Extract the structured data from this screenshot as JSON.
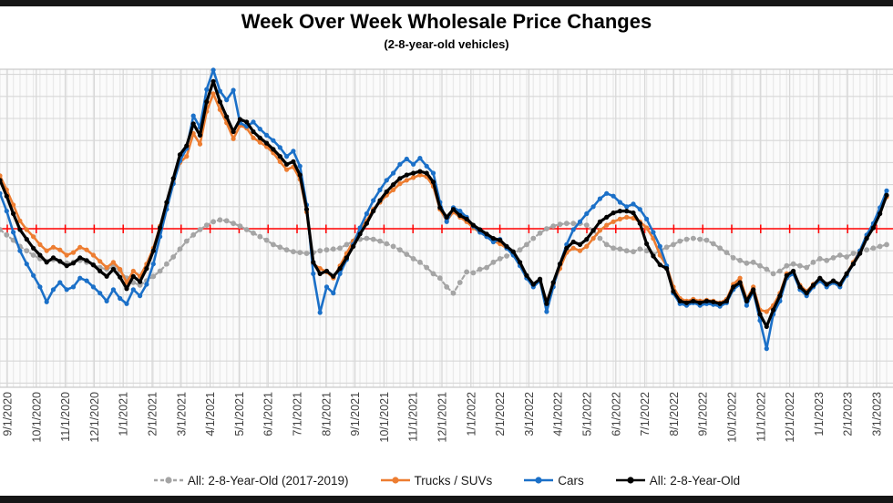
{
  "frame": {
    "top_bar": "window-top-border",
    "bottom_bar": "window-bottom-border"
  },
  "chart_data": {
    "type": "line",
    "title": "Week Over Week Wholesale Price Changes",
    "subtitle": "(2-8-year-old vehicles)",
    "xlabel": "",
    "ylabel": "",
    "x_tick_labels": [
      "9/1/2020",
      "10/1/2020",
      "11/1/2020",
      "12/1/2020",
      "1/1/2021",
      "2/1/2021",
      "3/1/2021",
      "4/1/2021",
      "5/1/2021",
      "6/1/2021",
      "7/1/2021",
      "8/1/2021",
      "9/1/2021",
      "10/1/2021",
      "11/1/2021",
      "12/1/2021",
      "1/1/2022",
      "2/1/2022",
      "3/1/2022",
      "4/1/2022",
      "5/1/2022",
      "6/1/2022",
      "7/1/2022",
      "8/1/2022",
      "9/1/2022",
      "10/1/2022",
      "11/1/2022",
      "12/1/2022",
      "1/1/2023",
      "2/1/2023",
      "3/1/2023"
    ],
    "x_resolution": "weekly",
    "points_per_series": 134,
    "ylim": [
      -1.8,
      1.8
    ],
    "y_gridline_step": 0.25,
    "zero_line": 0,
    "zero_line_color": "#FF0000",
    "grid": true,
    "legend_position": "bottom",
    "units": "percent (estimated, y-axis labels cropped)",
    "series": [
      {
        "name": "All: 2-8-Year-Old (2017-2019)",
        "slug": "all-2-8-year-old-2017-2019",
        "color": "#A5A5A5",
        "style": "dashed",
        "values": [
          -0.01,
          -0.07,
          -0.13,
          -0.2,
          -0.25,
          -0.3,
          -0.34,
          -0.37,
          -0.35,
          -0.37,
          -0.39,
          -0.38,
          -0.36,
          -0.38,
          -0.41,
          -0.44,
          -0.46,
          -0.43,
          -0.48,
          -0.56,
          -0.61,
          -0.64,
          -0.59,
          -0.54,
          -0.48,
          -0.4,
          -0.32,
          -0.23,
          -0.14,
          -0.07,
          -0.01,
          0.04,
          0.08,
          0.1,
          0.09,
          0.06,
          0.03,
          -0.01,
          -0.05,
          -0.09,
          -0.13,
          -0.18,
          -0.21,
          -0.24,
          -0.26,
          -0.27,
          -0.28,
          -0.27,
          -0.25,
          -0.24,
          -0.23,
          -0.22,
          -0.18,
          -0.14,
          -0.12,
          -0.11,
          -0.12,
          -0.14,
          -0.17,
          -0.2,
          -0.24,
          -0.29,
          -0.34,
          -0.38,
          -0.44,
          -0.51,
          -0.56,
          -0.66,
          -0.73,
          -0.61,
          -0.49,
          -0.5,
          -0.46,
          -0.44,
          -0.38,
          -0.34,
          -0.31,
          -0.28,
          -0.24,
          -0.18,
          -0.11,
          -0.05,
          0.0,
          0.03,
          0.05,
          0.06,
          0.06,
          0.06,
          0.04,
          -0.02,
          -0.11,
          -0.18,
          -0.22,
          -0.23,
          -0.25,
          -0.26,
          -0.23,
          -0.25,
          -0.29,
          -0.25,
          -0.21,
          -0.18,
          -0.14,
          -0.12,
          -0.11,
          -0.12,
          -0.13,
          -0.17,
          -0.22,
          -0.27,
          -0.33,
          -0.36,
          -0.39,
          -0.38,
          -0.42,
          -0.46,
          -0.51,
          -0.48,
          -0.42,
          -0.4,
          -0.42,
          -0.44,
          -0.38,
          -0.34,
          -0.36,
          -0.33,
          -0.3,
          -0.32,
          -0.28,
          -0.26,
          -0.24,
          -0.22,
          -0.2,
          -0.18
        ]
      },
      {
        "name": "Trucks / SUVs",
        "slug": "trucks-suvs",
        "color": "#ED7D31",
        "style": "solid",
        "values": [
          0.6,
          0.44,
          0.27,
          0.09,
          -0.01,
          -0.09,
          -0.18,
          -0.25,
          -0.21,
          -0.24,
          -0.3,
          -0.27,
          -0.21,
          -0.24,
          -0.3,
          -0.37,
          -0.44,
          -0.38,
          -0.46,
          -0.61,
          -0.48,
          -0.54,
          -0.4,
          -0.22,
          0.03,
          0.27,
          0.53,
          0.75,
          0.82,
          1.08,
          0.96,
          1.33,
          1.53,
          1.35,
          1.2,
          1.02,
          1.17,
          1.14,
          1.03,
          0.98,
          0.93,
          0.86,
          0.76,
          0.67,
          0.7,
          0.56,
          0.19,
          -0.4,
          -0.45,
          -0.49,
          -0.56,
          -0.42,
          -0.28,
          -0.14,
          -0.02,
          0.09,
          0.22,
          0.3,
          0.38,
          0.44,
          0.51,
          0.55,
          0.58,
          0.61,
          0.59,
          0.48,
          0.22,
          0.09,
          0.19,
          0.13,
          0.08,
          0.01,
          -0.04,
          -0.09,
          -0.14,
          -0.17,
          -0.22,
          -0.28,
          -0.4,
          -0.54,
          -0.64,
          -0.59,
          -0.82,
          -0.63,
          -0.45,
          -0.27,
          -0.22,
          -0.25,
          -0.2,
          -0.11,
          -0.02,
          0.04,
          0.08,
          0.11,
          0.13,
          0.12,
          0.08,
          0.01,
          -0.11,
          -0.3,
          -0.42,
          -0.66,
          -0.79,
          -0.82,
          -0.8,
          -0.82,
          -0.81,
          -0.82,
          -0.84,
          -0.8,
          -0.63,
          -0.56,
          -0.8,
          -0.66,
          -0.92,
          -0.94,
          -0.87,
          -0.73,
          -0.51,
          -0.49,
          -0.64,
          -0.71,
          -0.63,
          -0.57,
          -0.64,
          -0.6,
          -0.64,
          -0.51,
          -0.38,
          -0.25,
          -0.09,
          0.04,
          0.2,
          0.36
        ]
      },
      {
        "name": "Cars",
        "slug": "cars",
        "color": "#1B70C8",
        "style": "solid",
        "values": [
          0.4,
          0.2,
          -0.04,
          -0.25,
          -0.4,
          -0.53,
          -0.66,
          -0.83,
          -0.69,
          -0.61,
          -0.69,
          -0.66,
          -0.56,
          -0.59,
          -0.66,
          -0.73,
          -0.82,
          -0.69,
          -0.79,
          -0.85,
          -0.69,
          -0.76,
          -0.63,
          -0.4,
          -0.09,
          0.22,
          0.51,
          0.77,
          0.91,
          1.28,
          1.15,
          1.58,
          1.8,
          1.56,
          1.46,
          1.57,
          1.2,
          1.16,
          1.21,
          1.13,
          1.06,
          1.0,
          0.92,
          0.82,
          0.88,
          0.71,
          0.27,
          -0.51,
          -0.95,
          -0.66,
          -0.73,
          -0.51,
          -0.35,
          -0.18,
          0.01,
          0.17,
          0.32,
          0.44,
          0.55,
          0.63,
          0.73,
          0.79,
          0.73,
          0.8,
          0.71,
          0.63,
          0.3,
          0.08,
          0.24,
          0.2,
          0.13,
          0.03,
          -0.04,
          -0.09,
          -0.15,
          -0.12,
          -0.22,
          -0.3,
          -0.42,
          -0.56,
          -0.66,
          -0.59,
          -0.94,
          -0.66,
          -0.4,
          -0.18,
          -0.01,
          0.08,
          0.17,
          0.25,
          0.34,
          0.4,
          0.37,
          0.3,
          0.25,
          0.28,
          0.22,
          0.11,
          -0.04,
          -0.2,
          -0.42,
          -0.73,
          -0.85,
          -0.87,
          -0.84,
          -0.87,
          -0.85,
          -0.86,
          -0.88,
          -0.84,
          -0.69,
          -0.63,
          -0.87,
          -0.71,
          -1.04,
          -1.36,
          -0.97,
          -0.82,
          -0.56,
          -0.51,
          -0.69,
          -0.76,
          -0.66,
          -0.59,
          -0.66,
          -0.61,
          -0.66,
          -0.53,
          -0.4,
          -0.25,
          -0.07,
          0.06,
          0.24,
          0.43
        ]
      },
      {
        "name": "All: 2-8-Year-Old",
        "slug": "all-2-8-year-old",
        "color": "#000000",
        "style": "solid",
        "values": [
          0.55,
          0.37,
          0.17,
          -0.01,
          -0.12,
          -0.22,
          -0.3,
          -0.38,
          -0.33,
          -0.37,
          -0.42,
          -0.39,
          -0.33,
          -0.36,
          -0.41,
          -0.48,
          -0.54,
          -0.46,
          -0.55,
          -0.68,
          -0.54,
          -0.6,
          -0.45,
          -0.25,
          0.01,
          0.3,
          0.57,
          0.84,
          0.94,
          1.19,
          1.06,
          1.44,
          1.67,
          1.44,
          1.27,
          1.1,
          1.24,
          1.21,
          1.1,
          1.03,
          0.97,
          0.9,
          0.82,
          0.73,
          0.76,
          0.61,
          0.22,
          -0.38,
          -0.51,
          -0.48,
          -0.54,
          -0.45,
          -0.33,
          -0.2,
          -0.06,
          0.06,
          0.2,
          0.32,
          0.42,
          0.5,
          0.57,
          0.61,
          0.63,
          0.65,
          0.63,
          0.53,
          0.24,
          0.13,
          0.22,
          0.15,
          0.11,
          0.04,
          -0.01,
          -0.06,
          -0.11,
          -0.13,
          -0.2,
          -0.26,
          -0.38,
          -0.53,
          -0.63,
          -0.57,
          -0.85,
          -0.61,
          -0.4,
          -0.22,
          -0.15,
          -0.18,
          -0.12,
          -0.02,
          0.08,
          0.13,
          0.18,
          0.2,
          0.2,
          0.18,
          0.06,
          -0.17,
          -0.31,
          -0.41,
          -0.45,
          -0.71,
          -0.82,
          -0.84,
          -0.82,
          -0.84,
          -0.82,
          -0.83,
          -0.85,
          -0.82,
          -0.66,
          -0.61,
          -0.82,
          -0.69,
          -0.97,
          -1.11,
          -0.92,
          -0.76,
          -0.53,
          -0.48,
          -0.66,
          -0.73,
          -0.64,
          -0.56,
          -0.63,
          -0.59,
          -0.63,
          -0.51,
          -0.4,
          -0.28,
          -0.11,
          0.01,
          0.17,
          0.38
        ]
      }
    ]
  }
}
